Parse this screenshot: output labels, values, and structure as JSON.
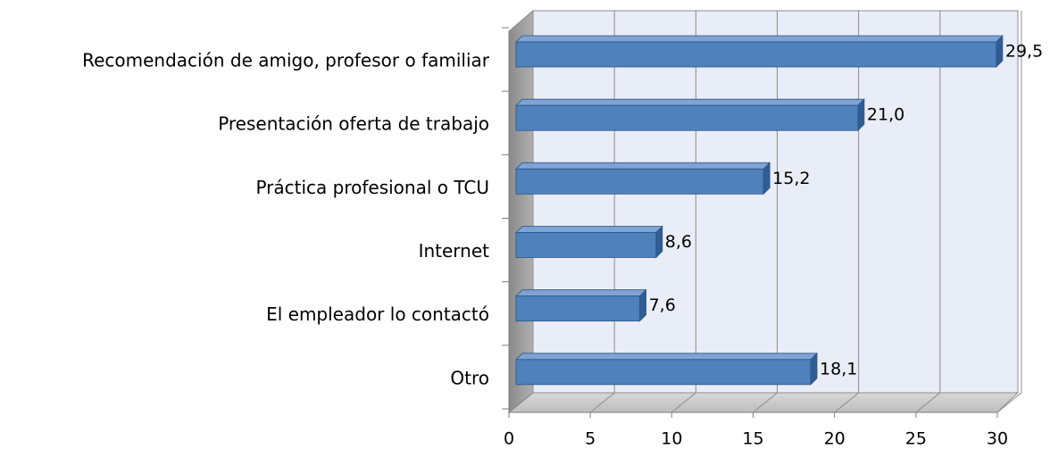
{
  "chart_data": {
    "type": "bar",
    "orientation": "horizontal",
    "categories": [
      "Recomendación de amigo, profesor o familiar",
      "Presentación oferta de trabajo",
      "Práctica profesional o TCU",
      "Internet",
      "El empleador lo contactó",
      "Otro"
    ],
    "values": [
      29.5,
      21.0,
      15.2,
      8.6,
      7.6,
      18.1
    ],
    "value_labels": [
      "29,5",
      "21,0",
      "15,2",
      "8,6",
      "7,6",
      "18,1"
    ],
    "color": "#4f81bd",
    "xlim": [
      0,
      30
    ],
    "xticks": [
      0,
      5,
      10,
      15,
      20,
      25,
      30
    ],
    "grid": true
  }
}
